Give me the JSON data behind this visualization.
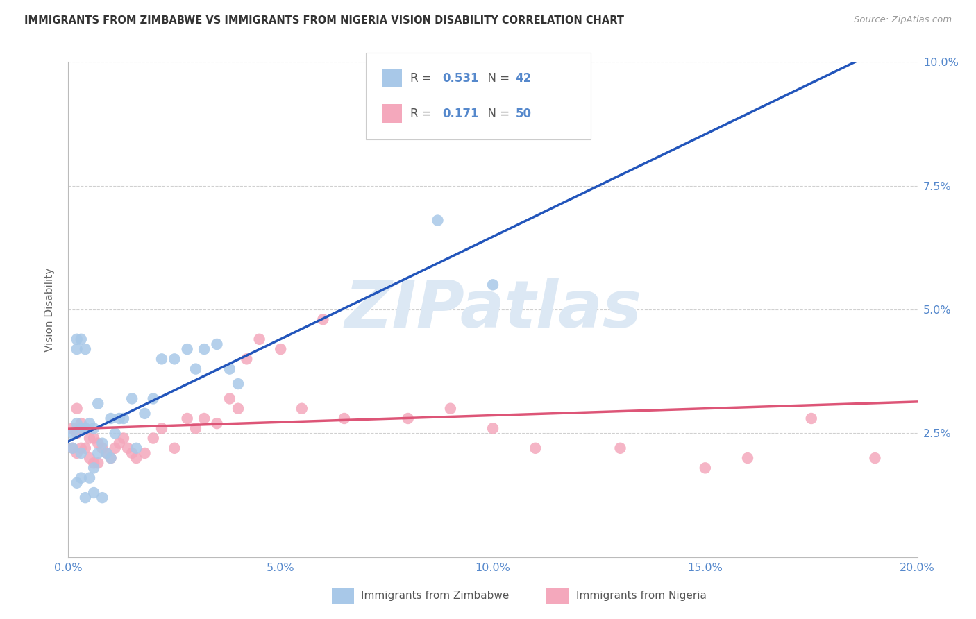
{
  "title": "IMMIGRANTS FROM ZIMBABWE VS IMMIGRANTS FROM NIGERIA VISION DISABILITY CORRELATION CHART",
  "source": "Source: ZipAtlas.com",
  "ylabel": "Vision Disability",
  "xlim": [
    0.0,
    0.2
  ],
  "ylim": [
    0.0,
    0.1
  ],
  "xtick_vals": [
    0.0,
    0.05,
    0.1,
    0.15,
    0.2
  ],
  "ytick_vals": [
    0.0,
    0.025,
    0.05,
    0.075,
    0.1
  ],
  "xticklabels": [
    "0.0%",
    "5.0%",
    "10.0%",
    "15.0%",
    "20.0%"
  ],
  "yticklabels_right": [
    "",
    "2.5%",
    "5.0%",
    "7.5%",
    "10.0%"
  ],
  "zimbabwe_color": "#a8c8e8",
  "nigeria_color": "#f4a8bc",
  "line_blue": "#2255bb",
  "line_pink": "#dd5577",
  "r_zimbabwe": 0.531,
  "n_zimbabwe": 42,
  "r_nigeria": 0.171,
  "n_nigeria": 50,
  "watermark_text": "ZIPatlas",
  "watermark_color": "#dce8f4",
  "background": "#ffffff",
  "grid_color": "#d0d0d0",
  "tick_color": "#5588cc",
  "zimbabwe_x": [
    0.001,
    0.001,
    0.002,
    0.002,
    0.002,
    0.003,
    0.003,
    0.003,
    0.004,
    0.004,
    0.005,
    0.005,
    0.006,
    0.006,
    0.007,
    0.007,
    0.008,
    0.009,
    0.01,
    0.01,
    0.011,
    0.012,
    0.013,
    0.015,
    0.016,
    0.018,
    0.02,
    0.022,
    0.025,
    0.028,
    0.03,
    0.032,
    0.035,
    0.038,
    0.04,
    0.002,
    0.003,
    0.004,
    0.006,
    0.008,
    0.087,
    0.1
  ],
  "zimbabwe_y": [
    0.025,
    0.022,
    0.044,
    0.042,
    0.027,
    0.044,
    0.026,
    0.021,
    0.042,
    0.026,
    0.027,
    0.016,
    0.026,
    0.013,
    0.031,
    0.021,
    0.023,
    0.021,
    0.028,
    0.02,
    0.025,
    0.028,
    0.028,
    0.032,
    0.022,
    0.029,
    0.032,
    0.04,
    0.04,
    0.042,
    0.038,
    0.042,
    0.043,
    0.038,
    0.035,
    0.015,
    0.016,
    0.012,
    0.018,
    0.012,
    0.068,
    0.055
  ],
  "nigeria_x": [
    0.001,
    0.001,
    0.002,
    0.002,
    0.002,
    0.003,
    0.003,
    0.004,
    0.004,
    0.005,
    0.005,
    0.006,
    0.006,
    0.007,
    0.007,
    0.008,
    0.009,
    0.01,
    0.011,
    0.012,
    0.013,
    0.014,
    0.015,
    0.016,
    0.018,
    0.02,
    0.022,
    0.025,
    0.028,
    0.03,
    0.032,
    0.035,
    0.038,
    0.04,
    0.042,
    0.045,
    0.05,
    0.055,
    0.06,
    0.065,
    0.075,
    0.08,
    0.09,
    0.1,
    0.11,
    0.13,
    0.15,
    0.16,
    0.175,
    0.19
  ],
  "nigeria_y": [
    0.026,
    0.022,
    0.03,
    0.025,
    0.021,
    0.027,
    0.022,
    0.026,
    0.022,
    0.024,
    0.02,
    0.024,
    0.019,
    0.023,
    0.019,
    0.022,
    0.021,
    0.02,
    0.022,
    0.023,
    0.024,
    0.022,
    0.021,
    0.02,
    0.021,
    0.024,
    0.026,
    0.022,
    0.028,
    0.026,
    0.028,
    0.027,
    0.032,
    0.03,
    0.04,
    0.044,
    0.042,
    0.03,
    0.048,
    0.028,
    0.095,
    0.028,
    0.03,
    0.026,
    0.022,
    0.022,
    0.018,
    0.02,
    0.028,
    0.02
  ]
}
